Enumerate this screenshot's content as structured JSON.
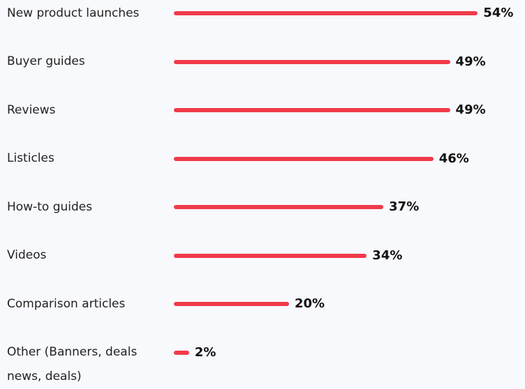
{
  "chart_data": {
    "type": "bar",
    "orientation": "horizontal",
    "categories": [
      "New product launches",
      "Buyer guides",
      "Reviews",
      "Listicles",
      "How-to guides",
      "Videos",
      "Comparison articles",
      "Other (Banners, deals news, deals)"
    ],
    "values": [
      54,
      49,
      49,
      46,
      37,
      34,
      20,
      2
    ],
    "value_labels": [
      "54%",
      "49%",
      "49%",
      "46%",
      "37%",
      "34%",
      "20%",
      "2%"
    ],
    "color": "#f03a4a"
  }
}
